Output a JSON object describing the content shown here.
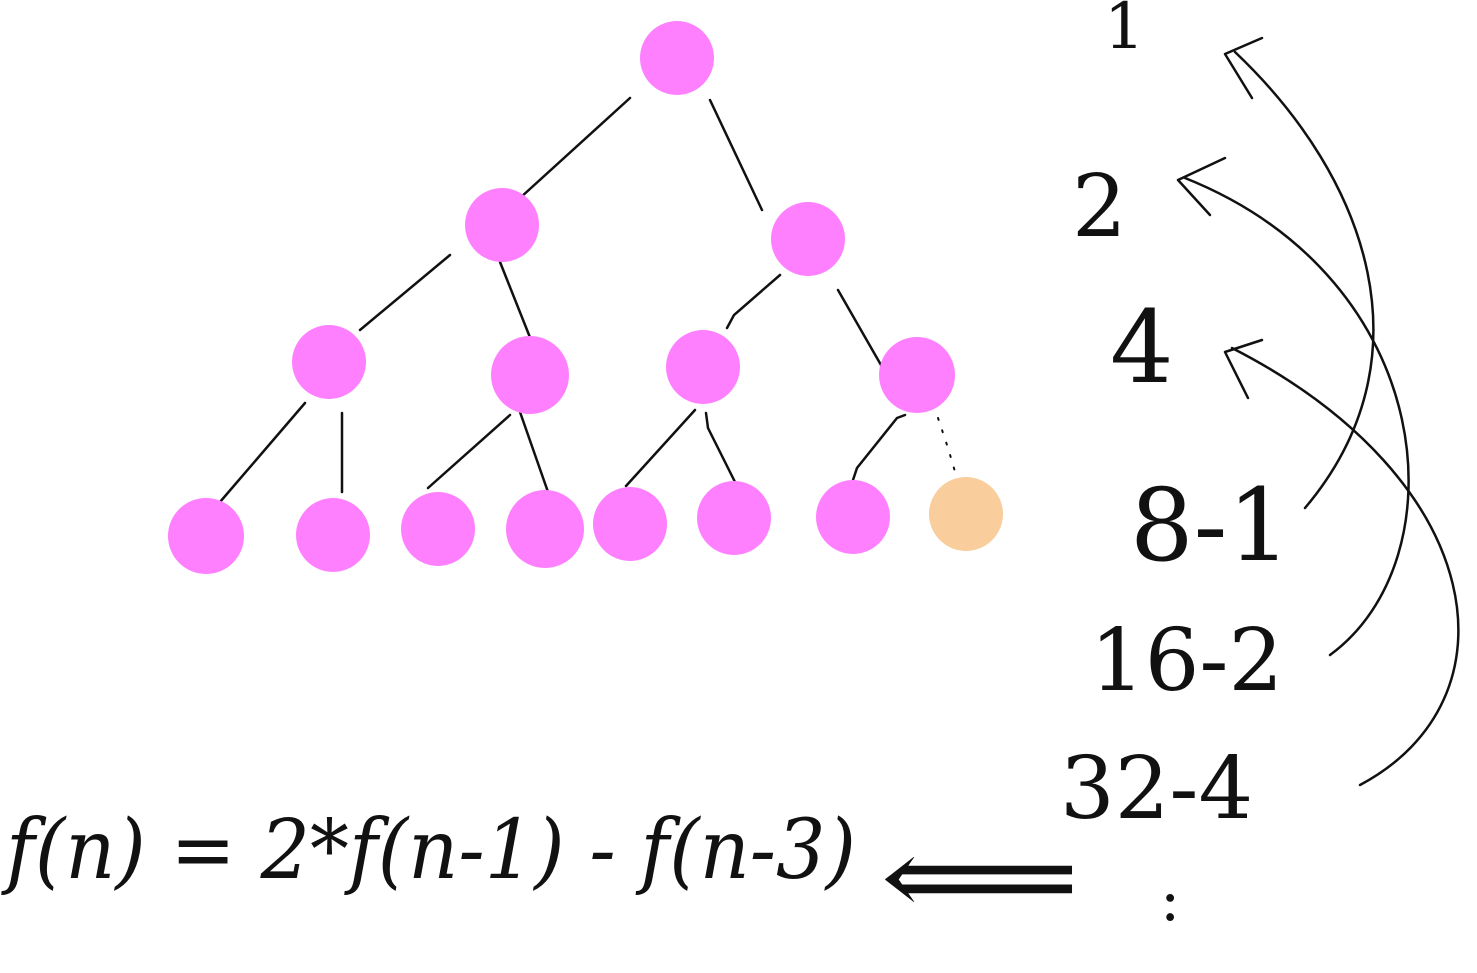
{
  "colors": {
    "node": "#ff80ff",
    "highlight_node": "#f9cd9c",
    "ink": "#111111",
    "background": "#ffffff"
  },
  "tree": {
    "levels": [
      [
        "node"
      ],
      [
        "node",
        "node"
      ],
      [
        "node",
        "node",
        "node",
        "node"
      ],
      [
        "node",
        "node",
        "node",
        "node",
        "node",
        "node",
        "node",
        "highlight"
      ]
    ],
    "dashed_edge_to": "highlight"
  },
  "sequence": [
    "1",
    "2",
    "4",
    "8-1",
    "16-2",
    "32-4",
    ":"
  ],
  "formula": "f(n) = 2*f(n-1) - f(n-3)",
  "arrow": "⟸"
}
